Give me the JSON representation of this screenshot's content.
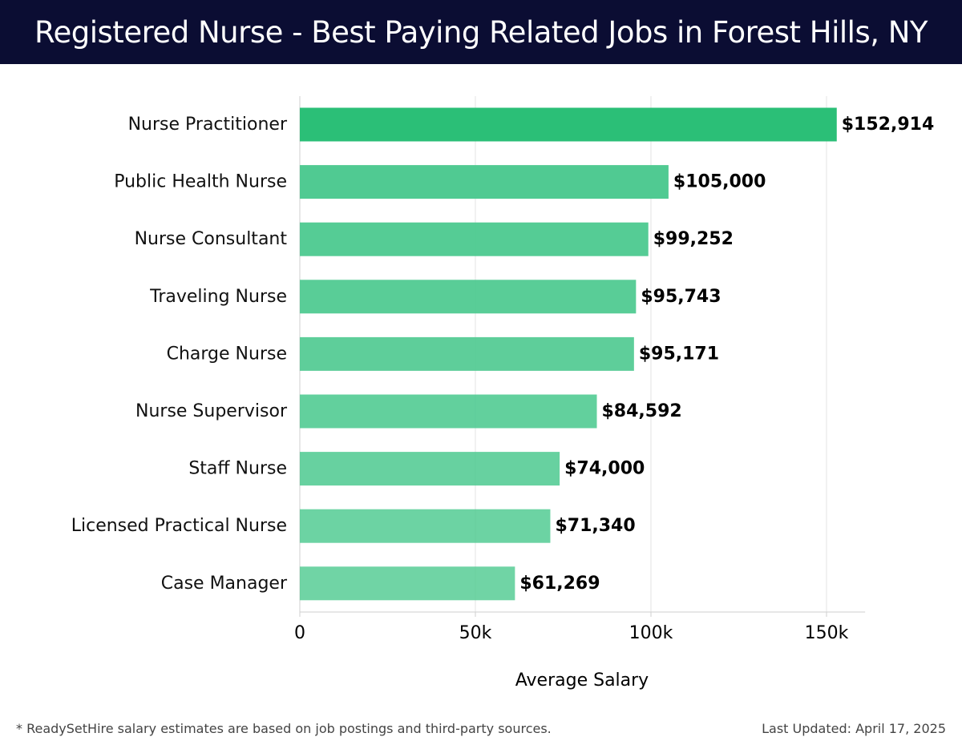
{
  "header": {
    "title": "Registered Nurse - Best Paying Related Jobs in Forest Hills, NY"
  },
  "colors": {
    "header_bg": "#0b0d33",
    "bar_top": "#2bbf77",
    "bar": "#4cc98f",
    "grid": "#e3e3e3"
  },
  "chart_data": {
    "type": "bar",
    "orientation": "horizontal",
    "title": "Registered Nurse - Best Paying Related Jobs in Forest Hills, NY",
    "xlabel": "Average Salary",
    "ylabel": "",
    "xlim": [
      0,
      161000
    ],
    "grid": true,
    "categories": [
      "Nurse Practitioner",
      "Public Health Nurse",
      "Nurse Consultant",
      "Traveling Nurse",
      "Charge Nurse",
      "Nurse Supervisor",
      "Staff Nurse",
      "Licensed Practical Nurse",
      "Case Manager"
    ],
    "values": [
      152914,
      105000,
      99252,
      95743,
      95171,
      84592,
      74000,
      71340,
      61269
    ],
    "value_labels": [
      "$152,914",
      "$105,000",
      "$99,252",
      "$95,743",
      "$95,171",
      "$84,592",
      "$74,000",
      "$71,340",
      "$61,269"
    ],
    "ticks": [
      0,
      50000,
      100000,
      150000
    ],
    "tick_labels": [
      "0",
      "50k",
      "100k",
      "150k"
    ]
  },
  "footer": {
    "note": "* ReadySetHire salary estimates are based on job postings and third-party sources.",
    "updated": "Last Updated: April 17, 2025"
  }
}
